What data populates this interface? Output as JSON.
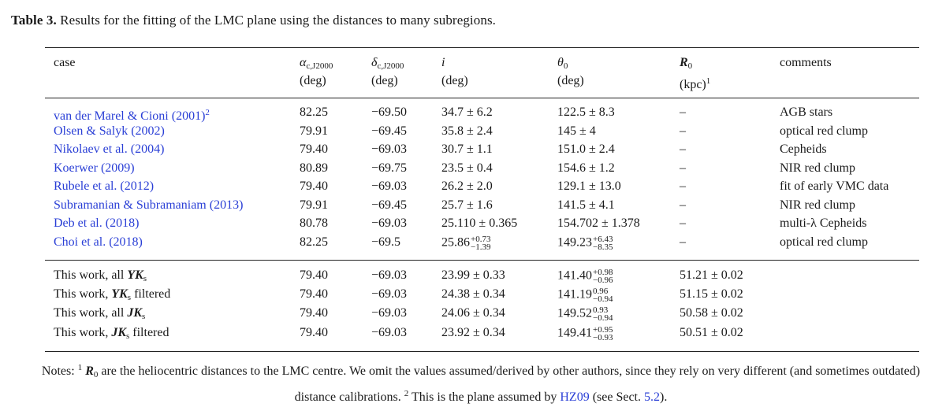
{
  "caption": {
    "label": "Table 3.",
    "text": " Results for the fitting of the LMC plane using the distances to many subregions."
  },
  "headers": {
    "case": "case",
    "alpha_sym": "α",
    "alpha_sub": "c,J2000",
    "alpha_unit": "(deg)",
    "delta_sym": "δ",
    "delta_sub": "c,J2000",
    "delta_unit": "(deg)",
    "i_sym": "i",
    "i_unit": "(deg)",
    "theta_sym": "θ",
    "theta_sub": "0",
    "theta_unit": "(deg)",
    "r_sym": "R",
    "r_sub": "0",
    "r_unit": "(kpc)",
    "r_sup": "1",
    "comments": "comments"
  },
  "rows": [
    {
      "case": "van der Marel & Cioni (2001)",
      "case_sup": "2",
      "alpha": "82.25",
      "delta": "−69.50",
      "i": "34.7 ± 6.2",
      "theta": "122.5 ± 8.3",
      "r0": "–",
      "comment": "AGB stars"
    },
    {
      "case": "Olsen & Salyk (2002)",
      "alpha": "79.91",
      "delta": "−69.45",
      "i": "35.8 ± 2.4",
      "theta": "145 ± 4",
      "r0": "–",
      "comment": "optical red clump"
    },
    {
      "case": "Nikolaev et al. (2004)",
      "alpha": "79.40",
      "delta": "−69.03",
      "i": "30.7 ± 1.1",
      "theta": "151.0 ± 2.4",
      "r0": "–",
      "comment": "Cepheids"
    },
    {
      "case": "Koerwer (2009)",
      "alpha": "80.89",
      "delta": "−69.75",
      "i": "23.5 ± 0.4",
      "theta": "154.6 ± 1.2",
      "r0": "–",
      "comment": "NIR red clump"
    },
    {
      "case": "Rubele et al. (2012)",
      "alpha": "79.40",
      "delta": "−69.03",
      "i": "26.2 ± 2.0",
      "theta": "129.1 ± 13.0",
      "r0": "–",
      "comment": "fit of early VMC data"
    },
    {
      "case": "Subramanian & Subramaniam (2013)",
      "alpha": "79.91",
      "delta": "−69.45",
      "i": "25.7 ± 1.6",
      "theta": "141.5 ± 4.1",
      "r0": "–",
      "comment": "NIR red clump"
    },
    {
      "case": "Deb et al. (2018)",
      "alpha": "80.78",
      "delta": "−69.03",
      "i": "25.110 ± 0.365",
      "theta": "154.702 ± 1.378",
      "r0": "–",
      "comment": "multi-λ Cepheids"
    },
    {
      "case": "Choi et al. (2018)",
      "alpha": "82.25",
      "delta": "−69.5",
      "i_base": "25.86",
      "i_up": "+0.73",
      "i_dn": "−1.39",
      "theta_base": "149.23",
      "theta_up": "+6.43",
      "theta_dn": "−8.35",
      "r0": "–",
      "comment": "optical red clump"
    }
  ],
  "work_rows": [
    {
      "pre": "This work, all ",
      "band": "YK",
      "band_sub": "s",
      "post": "",
      "alpha": "79.40",
      "delta": "−69.03",
      "i": "23.99 ± 0.33",
      "theta_base": "141.40",
      "theta_up": "+0.98",
      "theta_dn": "−0.96",
      "r0": "51.21 ± 0.02"
    },
    {
      "pre": "This work, ",
      "band": "YK",
      "band_sub": "s",
      "post": " filtered",
      "alpha": "79.40",
      "delta": "−69.03",
      "i": "24.38 ± 0.34",
      "theta_base": "141.19",
      "theta_up": "0.96",
      "theta_dn": "−0.94",
      "r0": "51.15 ± 0.02"
    },
    {
      "pre": "This work, all ",
      "band": "JK",
      "band_sub": "s",
      "post": "",
      "alpha": "79.40",
      "delta": "−69.03",
      "i": "24.06 ± 0.34",
      "theta_base": "149.52",
      "theta_up": "0.93",
      "theta_dn": "−0.94",
      "r0": "50.58 ± 0.02"
    },
    {
      "pre": "This work, ",
      "band": "JK",
      "band_sub": "s",
      "post": " filtered",
      "alpha": "79.40",
      "delta": "−69.03",
      "i": "23.92 ± 0.34",
      "theta_base": "149.41",
      "theta_up": "+0.95",
      "theta_dn": "−0.93",
      "r0": "50.51 ± 0.02"
    }
  ],
  "notes": {
    "prefix": "Notes: ",
    "sup1": "1",
    "r_sym": "R",
    "r_sub": "0",
    "text1": " are the heliocentric distances to the LMC centre. We omit the values assumed/derived by other authors, since they rely on very different (and sometimes outdated) distance calibrations. ",
    "sup2": "2",
    "text2": " This is the plane assumed by ",
    "link1": "HZ09",
    "text3": " (see Sect. ",
    "link2": "5.2",
    "text4": ")."
  }
}
